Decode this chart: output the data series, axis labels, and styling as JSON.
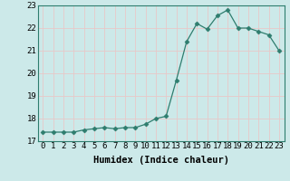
{
  "x": [
    0,
    1,
    2,
    3,
    4,
    5,
    6,
    7,
    8,
    9,
    10,
    11,
    12,
    13,
    14,
    15,
    16,
    17,
    18,
    19,
    20,
    21,
    22,
    23
  ],
  "y": [
    17.4,
    17.4,
    17.4,
    17.4,
    17.5,
    17.55,
    17.6,
    17.55,
    17.6,
    17.6,
    17.75,
    18.0,
    18.1,
    19.7,
    21.4,
    22.2,
    21.95,
    22.55,
    22.8,
    22.0,
    22.0,
    21.85,
    21.7,
    21.0
  ],
  "line_color": "#2e7d6e",
  "marker": "D",
  "marker_size": 2.5,
  "bg_color": "#cce9e9",
  "grid_color": "#e8c8c8",
  "xlabel": "Humidex (Indice chaleur)",
  "ylim": [
    17,
    23
  ],
  "xlim": [
    -0.5,
    23.5
  ],
  "yticks": [
    17,
    18,
    19,
    20,
    21,
    22,
    23
  ],
  "xticks": [
    0,
    1,
    2,
    3,
    4,
    5,
    6,
    7,
    8,
    9,
    10,
    11,
    12,
    13,
    14,
    15,
    16,
    17,
    18,
    19,
    20,
    21,
    22,
    23
  ],
  "xlabel_fontsize": 7.5,
  "tick_fontsize": 6.5
}
